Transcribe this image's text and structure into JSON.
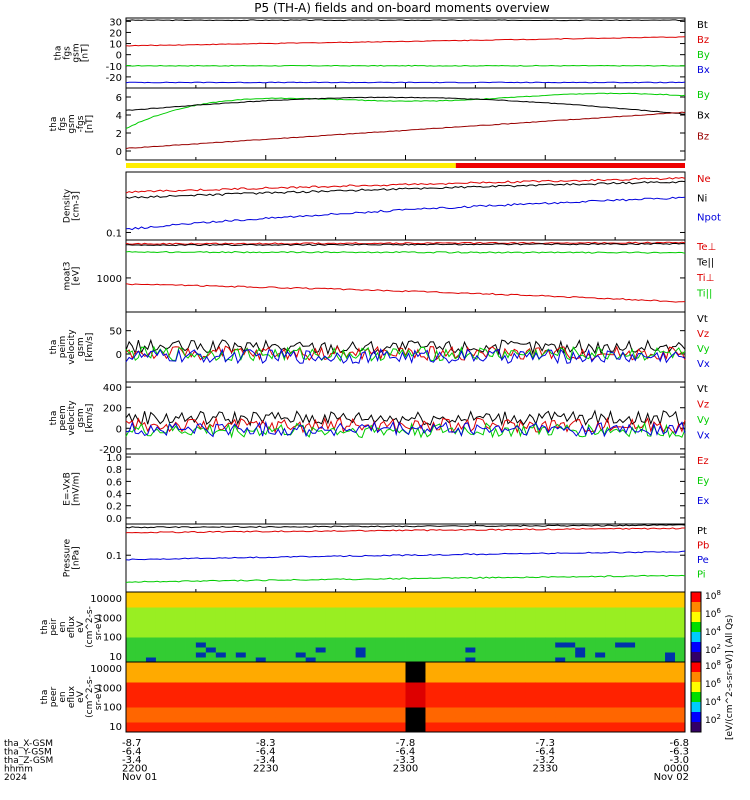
{
  "title": "P5 (TH-A) fields and on-board moments overview",
  "colors": {
    "black": "#000000",
    "red": "#dd0000",
    "green": "#00cc00",
    "blue": "#0000dd",
    "yellow": "#ffee00",
    "barred": "#ee0000"
  },
  "chart_data": {
    "type": "line",
    "time_axis": {
      "ticks": [
        "2200",
        "2230",
        "2300",
        "2330",
        "0000"
      ],
      "date_labels": [
        "Nov 01",
        "",
        "",
        "",
        "Nov 02"
      ],
      "year": "2024",
      "rows": [
        {
          "label": "tha_X-GSM",
          "values": [
            "-8.7",
            "-8.3",
            "-7.8",
            "-7.3",
            "-6.8"
          ]
        },
        {
          "label": "tha_Y-GSM",
          "values": [
            "-6.4",
            "-6.4",
            "-6.4",
            "-6.4",
            "-6.3"
          ]
        },
        {
          "label": "tha_Z-GSM",
          "values": [
            "-3.4",
            "-3.4",
            "-3.3",
            "-3.2",
            "-3.0"
          ]
        },
        {
          "label": "hhmm",
          "values": [
            "2200",
            "2230",
            "2300",
            "2330",
            "0000"
          ]
        },
        {
          "label": "2024",
          "values": [
            "Nov 01",
            "",
            "",
            "",
            "Nov 02"
          ]
        }
      ]
    },
    "panels": [
      {
        "id": "fgs",
        "ylabel": [
          "tha",
          "fgs",
          "gsm",
          "[nT]"
        ],
        "ylim": [
          -30,
          33
        ],
        "ticks": [
          "30",
          "20",
          "10",
          "0",
          "-10",
          "-20"
        ],
        "series": [
          {
            "name": "Bt",
            "color": "#000000",
            "start": 31,
            "end": 31
          },
          {
            "name": "Bz",
            "color": "#dd0000",
            "start": 8,
            "end": 16
          },
          {
            "name": "By",
            "color": "#00cc00",
            "start": -10,
            "end": -10
          },
          {
            "name": "Bx",
            "color": "#0000dd",
            "start": -25,
            "end": -25
          }
        ]
      },
      {
        "id": "fgs_lo",
        "ylabel": [
          "tha",
          "fgs",
          "gsm",
          "-fgs",
          "[nT]"
        ],
        "ylim": [
          -1,
          7
        ],
        "ticks": [
          "6",
          "4",
          "2",
          "0"
        ],
        "series": [
          {
            "name": "By",
            "color": "#00cc00",
            "start": 2.5,
            "end": 6.5
          },
          {
            "name": "Bx",
            "color": "#000000",
            "start": 4.5,
            "end": 4.8
          },
          {
            "name": "Bz",
            "color": "#990000",
            "start": 0.3,
            "end": 4.3
          }
        ]
      },
      {
        "id": "density",
        "ylabel": [
          "Density",
          "[cm-3]"
        ],
        "ylim": [
          0.08,
          0.6
        ],
        "ticks": [
          "0.1"
        ],
        "series": [
          {
            "name": "Ne",
            "color": "#dd0000",
            "start": 0.33,
            "end": 0.5
          },
          {
            "name": "Ni",
            "color": "#000000",
            "start": 0.28,
            "end": 0.45
          },
          {
            "name": "Npot",
            "color": "#0000dd",
            "start": 0.11,
            "end": 0.28
          }
        ]
      },
      {
        "id": "temp",
        "ylabel": [
          "moat3",
          "[eV]"
        ],
        "ylim": [
          200,
          6000
        ],
        "ticks": [
          "1000"
        ],
        "series": [
          {
            "name": "Te⊥",
            "color": "#dd0000",
            "start": 5000,
            "end": 5300
          },
          {
            "name": "Te||",
            "color": "#000000",
            "start": 4700,
            "end": 5000
          },
          {
            "name": "Ti⊥",
            "color": "#dd0000",
            "start": 750,
            "end": 320
          },
          {
            "name": "Ti||",
            "color": "#00cc00",
            "start": 3400,
            "end": 3300
          }
        ]
      },
      {
        "id": "peim",
        "ylabel": [
          "tha",
          "peim",
          "velocity",
          "gsm",
          "[km/s]"
        ],
        "ylim": [
          -60,
          90
        ],
        "ticks": [
          "50",
          "0"
        ],
        "series": [
          {
            "name": "Vt",
            "color": "#000000",
            "start": 15,
            "end": 15
          },
          {
            "name": "Vz",
            "color": "#dd0000",
            "start": 2,
            "end": 2
          },
          {
            "name": "Vy",
            "color": "#00cc00",
            "start": 0,
            "end": 0
          },
          {
            "name": "Vx",
            "color": "#0000dd",
            "start": -5,
            "end": -5
          }
        ]
      },
      {
        "id": "peem",
        "ylabel": [
          "tha",
          "peem",
          "velocity",
          "gsm",
          "[km/s]"
        ],
        "ylim": [
          -250,
          450
        ],
        "ticks": [
          "400",
          "200",
          "0",
          "-200"
        ],
        "series": [
          {
            "name": "Vt",
            "color": "#000000",
            "start": 100,
            "end": 100
          },
          {
            "name": "Vz",
            "color": "#dd0000",
            "start": 30,
            "end": 30
          },
          {
            "name": "Vy",
            "color": "#00cc00",
            "start": -20,
            "end": -20
          },
          {
            "name": "Vx",
            "color": "#0000dd",
            "start": -10,
            "end": -10
          }
        ]
      },
      {
        "id": "efield",
        "ylabel": [
          "E=-VxB",
          "[mV/m]"
        ],
        "ylim": [
          -0.1,
          1.05
        ],
        "ticks": [
          "1.0",
          "0.8",
          "0.6",
          "0.4",
          "0.2",
          "0.0"
        ],
        "series": [
          {
            "name": "Ez",
            "color": "#dd0000"
          },
          {
            "name": "Ey",
            "color": "#00cc00"
          },
          {
            "name": "Ex",
            "color": "#0000dd"
          }
        ]
      },
      {
        "id": "pressure",
        "ylabel": [
          "Pressure",
          "[nPa]"
        ],
        "ylim": [
          0.015,
          0.5
        ],
        "ticks": [
          "0.1"
        ],
        "series": [
          {
            "name": "Pt",
            "color": "#000000",
            "start": 0.42,
            "end": 0.47
          },
          {
            "name": "Pb",
            "color": "#dd0000",
            "start": 0.32,
            "end": 0.4
          },
          {
            "name": "Pe",
            "color": "#0000dd",
            "start": 0.08,
            "end": 0.12
          },
          {
            "name": "Pi",
            "color": "#00cc00",
            "start": 0.025,
            "end": 0.035
          }
        ]
      },
      {
        "id": "peir",
        "ylabel": [
          "tha",
          "peir",
          "en",
          "eflux",
          "eV",
          "(cm^2-s-",
          "sr-eV)"
        ],
        "ylim": [
          5,
          20000
        ],
        "ticks": [
          "10000",
          "1000",
          "100",
          "10"
        ]
      },
      {
        "id": "peer",
        "ylabel": [
          "tha",
          "peer",
          "en",
          "eflux",
          "eV",
          "(cm^2-s-",
          "sr-eV)"
        ],
        "ylim": [
          5,
          20000
        ],
        "ticks": [
          "10000",
          "1000",
          "100",
          "10"
        ]
      }
    ],
    "colorbar": {
      "ticks": [
        "10^8",
        "10^6",
        "10^4",
        "10^2"
      ],
      "label": "[eV/(cm^2-s-sr-eV)] (All Qs)"
    }
  }
}
